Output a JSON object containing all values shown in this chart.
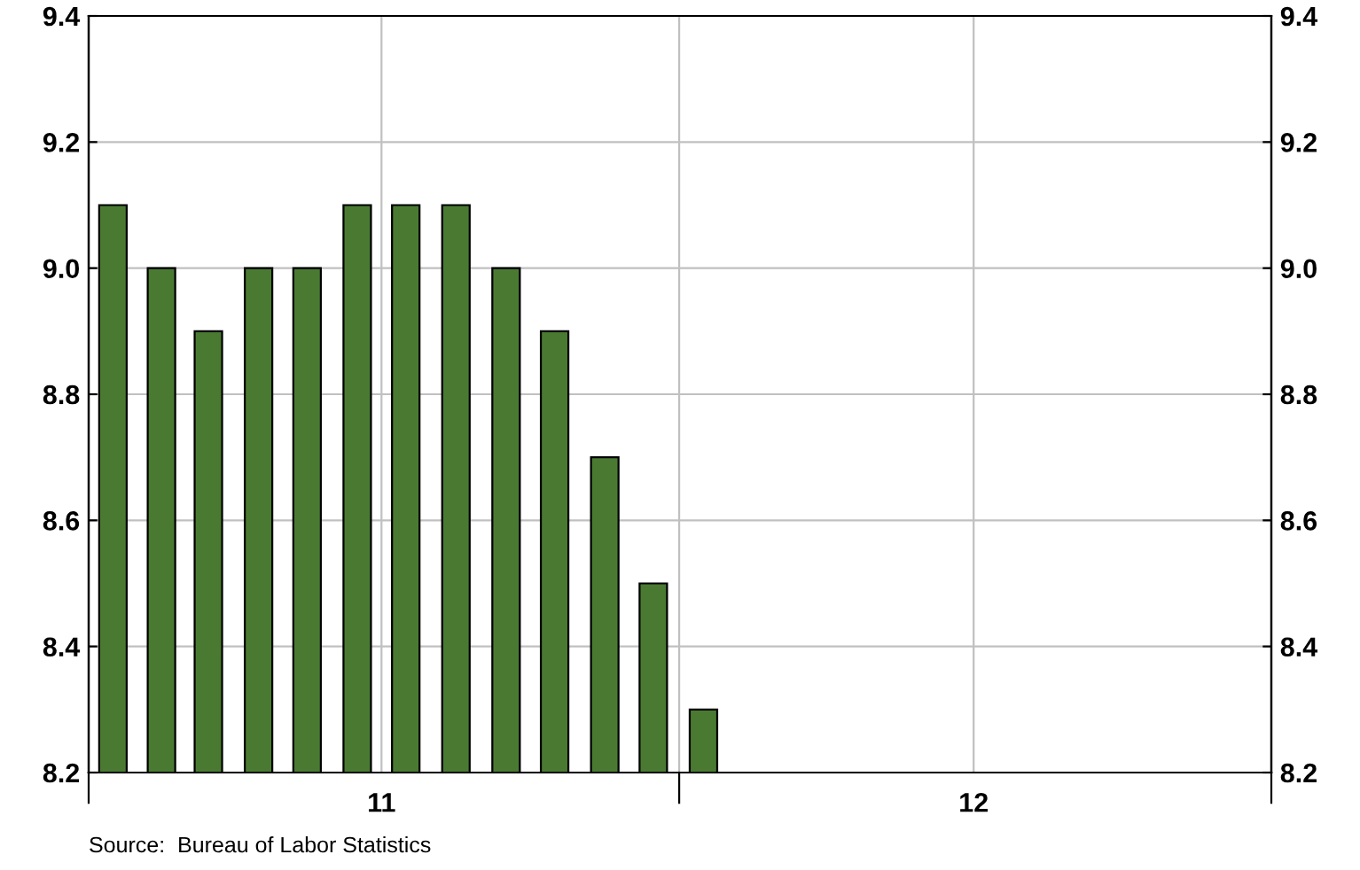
{
  "chart_data": {
    "type": "bar",
    "x": [
      "2011-01-16",
      "2011-02-15",
      "2011-03-16",
      "2011-04-16",
      "2011-05-16",
      "2011-06-16",
      "2011-07-16",
      "2011-08-16",
      "2011-09-16",
      "2011-10-16",
      "2011-11-16",
      "2011-12-16",
      "2012-01-16"
    ],
    "values": [
      9.1,
      9.0,
      8.9,
      9.0,
      9.0,
      9.1,
      9.1,
      9.1,
      9.0,
      8.9,
      8.7,
      8.5,
      8.3
    ],
    "color": "#4a7a32",
    "xlim": [
      "2011-01-01",
      "2013-01-01"
    ],
    "xticks": [
      {
        "value": "2011-01-01",
        "label": null
      },
      {
        "value": "2011-07-01",
        "label": "11"
      },
      {
        "value": "2012-01-01",
        "label": null
      },
      {
        "value": "2012-07-01",
        "label": "12"
      },
      {
        "value": "2013-01-01",
        "label": null
      }
    ],
    "ylim": [
      8.2,
      9.4
    ],
    "yticks": [
      {
        "value": 8.2,
        "label": "8.2"
      },
      {
        "value": 8.4,
        "label": "8.4"
      },
      {
        "value": 8.6,
        "label": "8.6"
      },
      {
        "value": 8.8,
        "label": "8.8"
      },
      {
        "value": 9.0,
        "label": "9.0"
      },
      {
        "value": 9.2,
        "label": "9.2"
      },
      {
        "value": 9.4,
        "label": "9.4"
      }
    ],
    "y2lim": [
      8.2,
      9.4
    ],
    "y2ticks": [
      {
        "value": 8.2,
        "label": "8.2"
      },
      {
        "value": 8.4,
        "label": "8.4"
      },
      {
        "value": 8.6,
        "label": "8.6"
      },
      {
        "value": 8.8,
        "label": "8.8"
      },
      {
        "value": 9.0,
        "label": "9.0"
      },
      {
        "value": 9.2,
        "label": "9.2"
      },
      {
        "value": 9.4,
        "label": "9.4"
      }
    ],
    "grid": true,
    "annotations": [
      "Source:  Bureau of Labor Statistics"
    ]
  }
}
